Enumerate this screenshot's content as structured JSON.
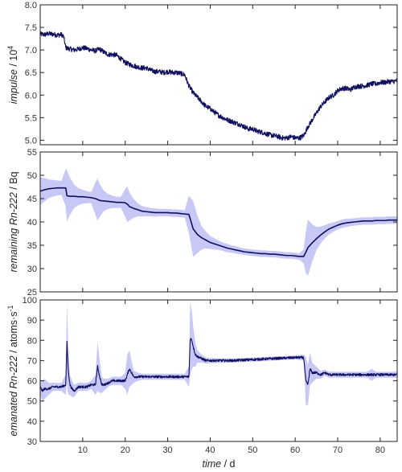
{
  "chart_data": [
    {
      "type": "line",
      "ylabel": {
        "italic": "impulse",
        "rest": " / 10",
        "sup": "4"
      },
      "ylim": [
        4.9,
        8.0
      ],
      "yticks": [
        "5.0",
        "5.5",
        "6.0",
        "6.5",
        "7.0",
        "7.5",
        "8.0"
      ],
      "xlim": [
        0,
        84
      ],
      "line_color": "#0f0f5e",
      "band_color": "#c7c8f5",
      "series": [
        {
          "x": [
            0,
            1,
            2,
            3,
            4,
            5,
            5.5,
            6,
            7,
            8,
            9,
            10,
            11,
            12,
            13,
            14,
            15,
            16,
            17,
            18,
            19,
            20,
            21,
            22,
            23,
            24,
            25,
            26,
            27,
            28,
            29,
            30,
            31,
            32,
            33,
            34,
            35,
            36,
            37,
            38,
            39,
            40,
            41,
            42,
            43,
            44,
            45,
            46,
            47,
            48,
            49,
            50,
            51,
            52,
            53,
            54,
            55,
            56,
            57,
            58,
            59,
            60,
            61,
            62,
            63,
            64,
            65,
            66,
            67,
            68,
            69,
            70,
            71,
            72,
            73,
            74,
            75,
            76,
            77,
            78,
            79,
            80,
            81,
            82,
            83,
            84
          ],
          "y": [
            7.35,
            7.34,
            7.36,
            7.35,
            7.33,
            7.34,
            7.3,
            7.05,
            7.02,
            7.0,
            7.02,
            7.05,
            7.03,
            7.0,
            6.98,
            7.02,
            6.95,
            6.9,
            6.9,
            6.88,
            6.8,
            6.72,
            6.68,
            6.65,
            6.62,
            6.6,
            6.6,
            6.55,
            6.52,
            6.52,
            6.5,
            6.52,
            6.5,
            6.5,
            6.48,
            6.45,
            6.2,
            6.05,
            5.95,
            5.85,
            5.75,
            5.7,
            5.62,
            5.55,
            5.5,
            5.45,
            5.42,
            5.38,
            5.35,
            5.3,
            5.25,
            5.25,
            5.2,
            5.18,
            5.15,
            5.12,
            5.1,
            5.08,
            5.05,
            5.05,
            5.08,
            5.05,
            5.05,
            5.1,
            5.3,
            5.45,
            5.6,
            5.75,
            5.85,
            5.95,
            6.0,
            6.1,
            6.15,
            6.15,
            6.12,
            6.18,
            6.2,
            6.2,
            6.22,
            6.25,
            6.25,
            6.28,
            6.28,
            6.3,
            6.3,
            6.32
          ],
          "noise": 0.055
        }
      ]
    },
    {
      "type": "line",
      "ylabel": {
        "italic": "remaining Rn-222",
        "rest": " / Bq",
        "sup": ""
      },
      "ylim": [
        25,
        55
      ],
      "yticks": [
        "25",
        "30",
        "35",
        "40",
        "45",
        "50",
        "55"
      ],
      "xlim": [
        0,
        84
      ],
      "line_color": "#0f0f5e",
      "band_color": "#c7c8f5",
      "series": [
        {
          "x": [
            0,
            1,
            2,
            3,
            4,
            5,
            6,
            6.3,
            7,
            8,
            9,
            10,
            11,
            12,
            13,
            13.5,
            14,
            15,
            16,
            17,
            18,
            19,
            20,
            20.5,
            21,
            22,
            23,
            24,
            25,
            26,
            27,
            28,
            29,
            30,
            31,
            32,
            33,
            34,
            35,
            36,
            37,
            38,
            39,
            40,
            41,
            42,
            43,
            44,
            45,
            46,
            47,
            48,
            49,
            50,
            51,
            52,
            53,
            54,
            55,
            56,
            57,
            58,
            59,
            60,
            61,
            62,
            62.5,
            63,
            64,
            65,
            66,
            67,
            68,
            69,
            70,
            71,
            72,
            73,
            74,
            75,
            76,
            77,
            78,
            79,
            80,
            81,
            82,
            83,
            84
          ],
          "y": [
            46.6,
            46.9,
            47.1,
            47.2,
            47.3,
            47.3,
            47.3,
            45.6,
            45.5,
            45.5,
            45.4,
            45.4,
            45.3,
            45.2,
            45.0,
            44.8,
            44.6,
            44.5,
            44.4,
            44.3,
            44.2,
            44.2,
            44.1,
            43.8,
            43.3,
            42.9,
            42.6,
            42.3,
            42.2,
            42.1,
            42.0,
            42.0,
            42.0,
            42.0,
            41.9,
            41.9,
            41.8,
            41.7,
            41.6,
            38.5,
            37.3,
            36.6,
            36.1,
            35.6,
            35.3,
            35.0,
            34.7,
            34.4,
            34.2,
            34.0,
            33.8,
            33.6,
            33.5,
            33.4,
            33.3,
            33.2,
            33.2,
            33.1,
            33.1,
            33.0,
            32.9,
            32.8,
            32.8,
            32.7,
            32.6,
            32.6,
            33.5,
            34.5,
            35.5,
            36.4,
            37.2,
            37.9,
            38.5,
            38.9,
            39.3,
            39.6,
            39.8,
            39.9,
            40.0,
            40.1,
            40.2,
            40.2,
            40.2,
            40.3,
            40.3,
            40.3,
            40.4,
            40.4,
            40.4
          ],
          "band": [
            3.0,
            2.5,
            2.0,
            1.8,
            1.6,
            1.5,
            4.0,
            5.5,
            4.0,
            2.5,
            1.8,
            1.5,
            1.3,
            1.2,
            3.5,
            4.5,
            3.5,
            2.2,
            1.6,
            1.3,
            1.2,
            1.2,
            3.0,
            3.8,
            3.0,
            2.0,
            1.4,
            1.1,
            1.0,
            0.9,
            0.9,
            0.8,
            0.8,
            0.8,
            0.8,
            0.8,
            0.8,
            0.8,
            4.0,
            6.0,
            4.0,
            2.5,
            1.8,
            1.4,
            1.2,
            1.0,
            0.9,
            0.9,
            0.8,
            0.8,
            0.7,
            0.7,
            0.7,
            0.7,
            0.7,
            0.7,
            0.7,
            0.7,
            0.7,
            0.7,
            0.7,
            0.7,
            0.7,
            0.7,
            0.7,
            1.5,
            4.5,
            6.0,
            4.0,
            2.5,
            1.8,
            1.4,
            1.2,
            1.0,
            0.9,
            0.9,
            0.9,
            0.8,
            0.8,
            0.8,
            0.8,
            0.8,
            0.8,
            0.8,
            0.8,
            0.8,
            0.8,
            0.8,
            0.8
          ]
        }
      ]
    },
    {
      "type": "line",
      "ylabel": {
        "italic": "emanated Rn-222",
        "rest": " / atoms·s",
        "sup": "-1"
      },
      "ylim": [
        30,
        100
      ],
      "yticks": [
        "30",
        "40",
        "50",
        "60",
        "70",
        "80",
        "90",
        "100"
      ],
      "xlim": [
        0,
        84
      ],
      "xticks": [
        "10",
        "20",
        "30",
        "40",
        "50",
        "60",
        "70",
        "80"
      ],
      "xlabel": {
        "italic": "time",
        "rest": " / d"
      },
      "line_color": "#0f0f5e",
      "band_color": "#c7c8f5",
      "series": [
        {
          "x": [
            0,
            0.5,
            1,
            2,
            3,
            4,
            5,
            6,
            6.3,
            6.6,
            7,
            7.5,
            8,
            9,
            10,
            11,
            12,
            13,
            13.5,
            14,
            14.5,
            15,
            16,
            17,
            18,
            19,
            20,
            20.5,
            21,
            21.5,
            22,
            23,
            24,
            25,
            26,
            27,
            28,
            29,
            30,
            31,
            32,
            33,
            34,
            35,
            35.3,
            35.7,
            36,
            36.5,
            37,
            38,
            39,
            40,
            45,
            50,
            55,
            60,
            62,
            62.5,
            63,
            63.5,
            64,
            65,
            66,
            67,
            68,
            69,
            70,
            71,
            72,
            73,
            74,
            75,
            76,
            77,
            78,
            79,
            80,
            81,
            82,
            83,
            84
          ],
          "y": [
            57,
            55,
            56,
            56,
            57,
            57,
            57,
            58,
            79,
            65,
            58,
            56,
            55,
            57,
            57,
            57,
            58,
            58,
            67,
            62,
            58,
            58,
            59,
            60,
            60,
            60,
            60,
            63,
            66,
            64,
            62,
            62,
            62,
            62,
            62,
            62,
            62,
            62,
            62,
            62,
            62,
            62,
            62,
            62,
            81,
            80,
            77,
            73,
            72,
            71,
            70,
            70,
            70,
            70.5,
            71,
            71.5,
            71.5,
            60,
            58,
            66,
            64,
            64,
            63,
            64,
            63,
            63,
            63,
            63,
            63,
            63,
            63,
            63,
            63,
            63,
            63,
            63,
            63,
            63,
            63,
            63,
            63
          ],
          "band": [
            4,
            5,
            5,
            3,
            2,
            2,
            2,
            5,
            20,
            12,
            5,
            4,
            3,
            2,
            2,
            2,
            2,
            5,
            12,
            8,
            4,
            3,
            2,
            2,
            2,
            2,
            4,
            10,
            9,
            6,
            3,
            2,
            1.5,
            1.5,
            1.5,
            1.5,
            1.5,
            1.5,
            1.5,
            1.5,
            1.5,
            1.5,
            1.5,
            5,
            18,
            14,
            10,
            6,
            3,
            2,
            1.5,
            1.2,
            1.0,
            1.0,
            1.0,
            1.0,
            1.5,
            12,
            10,
            8,
            5,
            3,
            2,
            1.5,
            1.5,
            1.5,
            1.5,
            1.5,
            1.5,
            1.5,
            1.5,
            1.5,
            1.5,
            1.5,
            3,
            1.5,
            1.5,
            1.5,
            1.5,
            1.5,
            1.5
          ],
          "noise": 0.6
        }
      ]
    }
  ]
}
